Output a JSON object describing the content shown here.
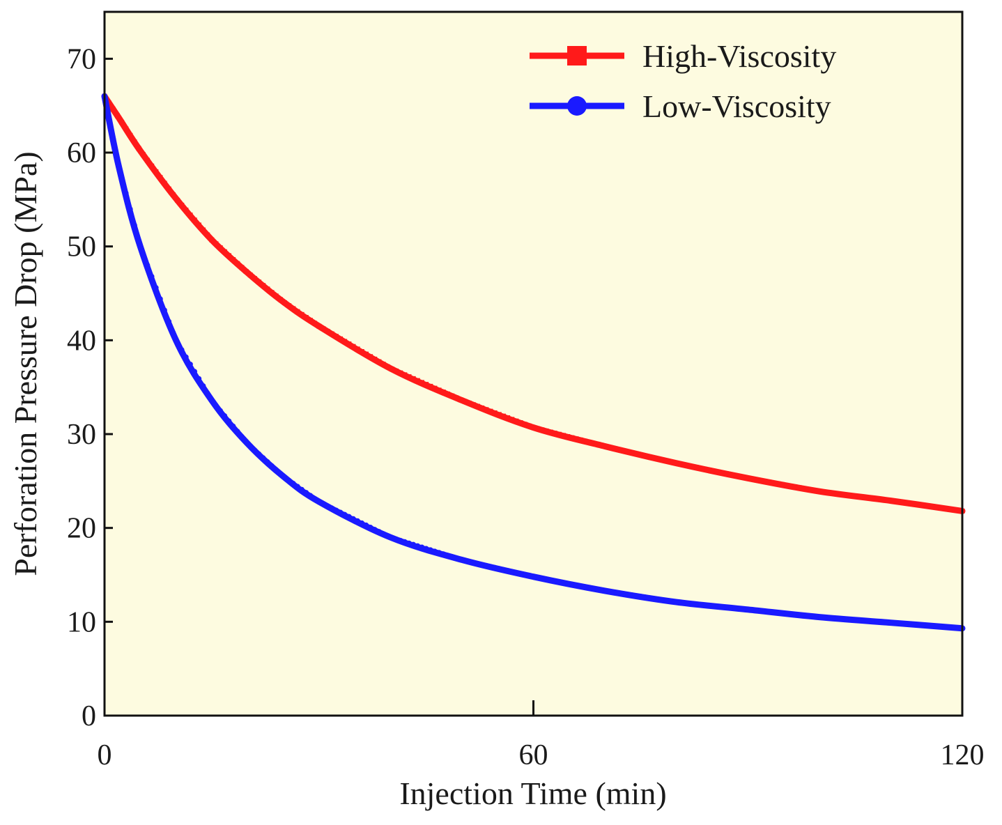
{
  "chart_data": {
    "type": "line",
    "title": "",
    "xlabel": "Injection Time (min)",
    "ylabel": "Perforation Pressure Drop (MPa)",
    "xlim": [
      0,
      120
    ],
    "ylim": [
      0,
      75
    ],
    "x_ticks": [
      0,
      60,
      120
    ],
    "x_tick_labels": [
      "0",
      "60",
      "120"
    ],
    "y_ticks": [
      0,
      10,
      20,
      30,
      40,
      50,
      60,
      70
    ],
    "y_tick_labels": [
      "0",
      "10",
      "20",
      "30",
      "40",
      "50",
      "60",
      "70"
    ],
    "grid": false,
    "legend_position": "top-right",
    "background_color": "#fdfbe0",
    "series": [
      {
        "name": "High-Viscosity",
        "color": "#ff1a1a",
        "marker": "square",
        "x": [
          0,
          2,
          5,
          10,
          15,
          20,
          25,
          30,
          40,
          50,
          60,
          70,
          80,
          90,
          100,
          110,
          120
        ],
        "values": [
          66,
          63.7,
          60.2,
          55.1,
          50.7,
          47.2,
          44.1,
          41.5,
          37.0,
          33.6,
          30.7,
          28.7,
          26.9,
          25.3,
          23.9,
          22.9,
          21.8
        ]
      },
      {
        "name": "Low-Viscosity",
        "color": "#1a1aff",
        "marker": "circle",
        "x": [
          0,
          2,
          5,
          10,
          15,
          20,
          25,
          30,
          40,
          50,
          60,
          70,
          80,
          90,
          100,
          110,
          120
        ],
        "values": [
          66,
          58.5,
          50.0,
          40.0,
          33.6,
          29.0,
          25.5,
          22.8,
          19.0,
          16.6,
          14.8,
          13.3,
          12.1,
          11.3,
          10.5,
          9.9,
          9.3
        ]
      }
    ]
  }
}
